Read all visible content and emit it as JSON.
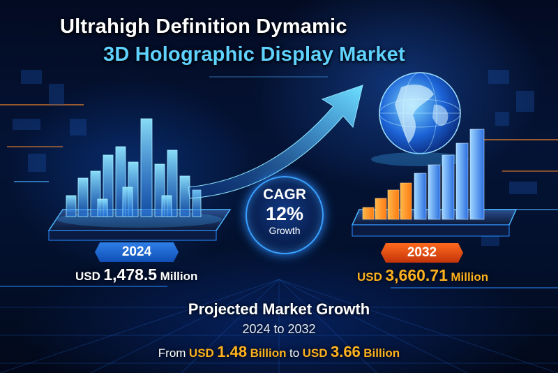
{
  "title": {
    "line1": "Ultrahigh Definition Dymamic",
    "line2": "3D Holographic Display Market"
  },
  "start": {
    "year_label": "2024",
    "value_prefix": "USD",
    "value_number": "1,478.5",
    "value_unit": "Million"
  },
  "end": {
    "year_label": "2032",
    "value_prefix": "USD",
    "value_number": "3,660.71",
    "value_unit": "Million"
  },
  "cagr": {
    "label": "CAGR",
    "value": "12%",
    "sublabel": "Growth"
  },
  "projection": {
    "title": "Projected Market Growth",
    "range": "2024 to 2032",
    "from_word": "From",
    "from_prefix": "USD",
    "from_number": "1.48",
    "from_unit": "Billion",
    "to_word": "to",
    "to_prefix": "USD",
    "to_number": "3.66",
    "to_unit": "Billion"
  },
  "colors": {
    "accent_blue": "#5fd2ff",
    "accent_orange": "#ffb21e",
    "background": "#03102c"
  },
  "icons": [
    "globe-icon",
    "growth-arrow-icon",
    "holographic-bar-chart-icon",
    "rising-bar-chart-icon"
  ]
}
